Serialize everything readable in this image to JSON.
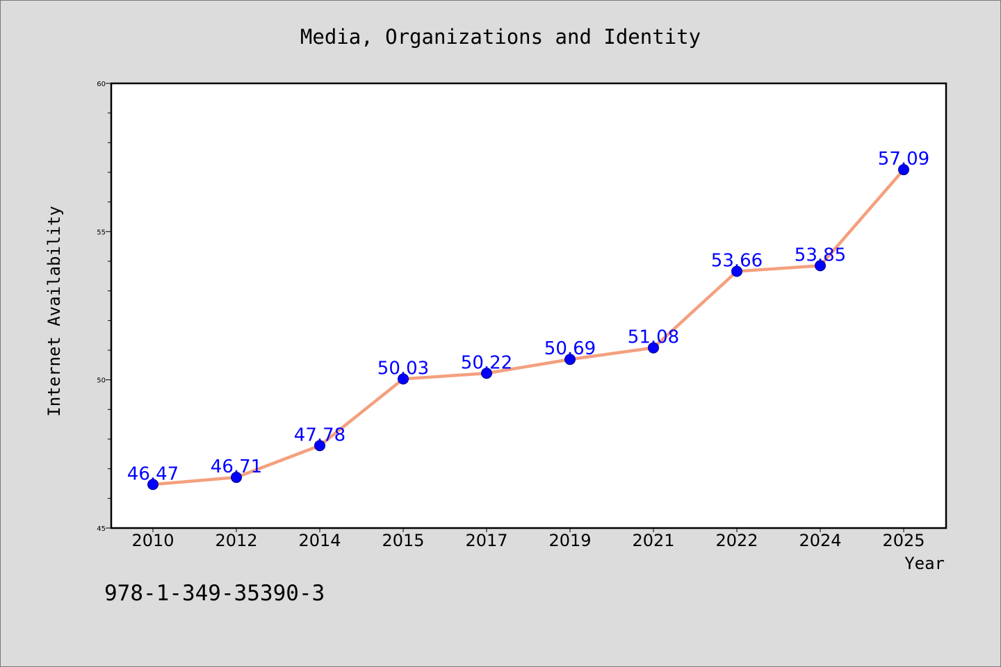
{
  "chart_data": {
    "type": "line",
    "title": "Media, Organizations and Identity",
    "xlabel": "Year",
    "ylabel": "Internet Availability",
    "categories": [
      "2010",
      "2012",
      "2014",
      "2015",
      "2017",
      "2019",
      "2021",
      "2022",
      "2024",
      "2025"
    ],
    "series": [
      {
        "values": [
          46.47,
          46.71,
          47.78,
          50.03,
          50.22,
          50.69,
          51.08,
          53.66,
          53.85,
          57.09
        ],
        "data_labels": [
          "46.47",
          "46.71",
          "47.78",
          "50.03",
          "50.22",
          "50.69",
          "51.08",
          "53.66",
          "53.85",
          "57.09"
        ],
        "line_color": "#f4a07e",
        "marker_color": "#0000ff",
        "label_color": "#0000ff"
      }
    ],
    "ylim": [
      45,
      60
    ],
    "yticks": [
      "45",
      "50",
      "55",
      "60"
    ],
    "grid": false,
    "legend": "none",
    "background_color": "#dcdcdc",
    "plot_background_color": "#ffffff"
  },
  "annotation": "978-1-349-35390-3"
}
